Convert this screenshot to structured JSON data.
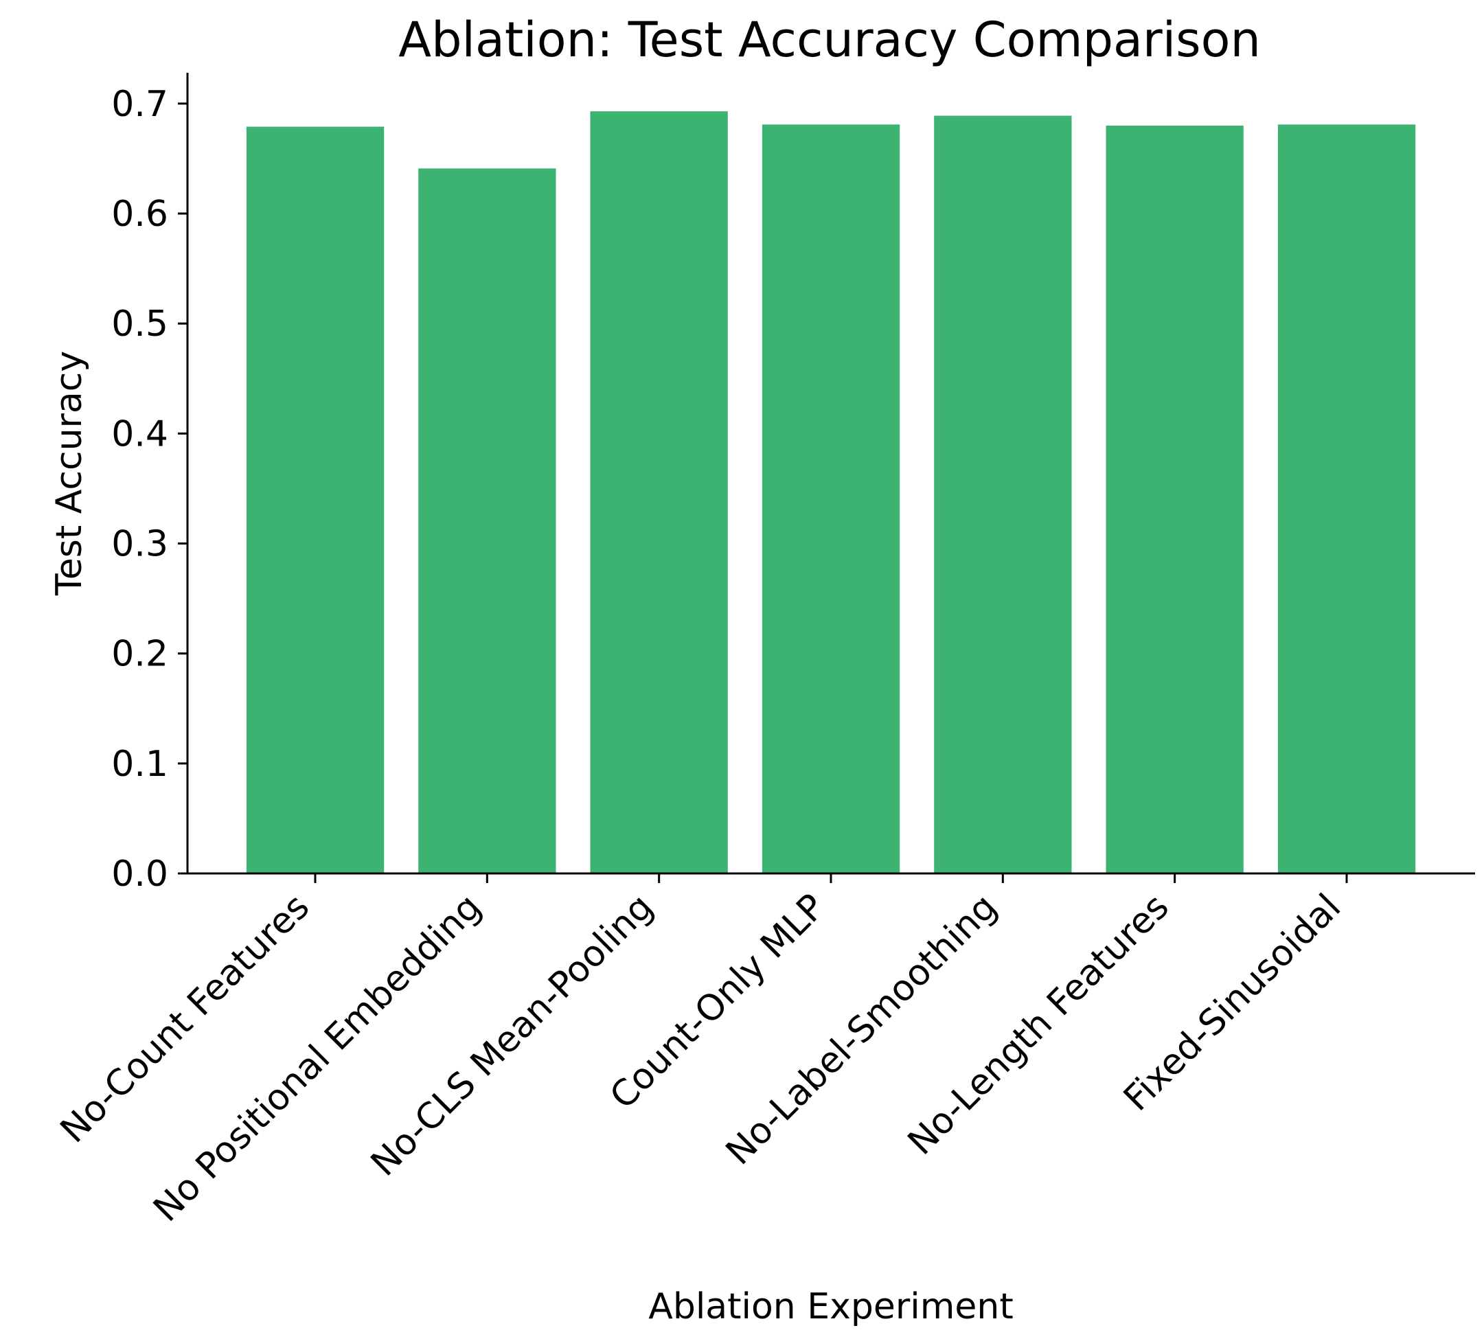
{
  "chart_data": {
    "type": "bar",
    "title": "Ablation: Test Accuracy Comparison",
    "xlabel": "Ablation Experiment",
    "ylabel": "Test Accuracy",
    "categories": [
      "No-Count Features",
      "No Positional Embedding",
      "No-CLS Mean-Pooling",
      "Count-Only MLP",
      "No-Label-Smoothing",
      "No-Length Features",
      "Fixed-Sinusoidal"
    ],
    "values": [
      0.679,
      0.641,
      0.693,
      0.681,
      0.689,
      0.68,
      0.681
    ],
    "ylim": [
      0,
      0.728
    ],
    "yticks": [
      0.0,
      0.1,
      0.2,
      0.3,
      0.4,
      0.5,
      0.6,
      0.7
    ],
    "ytick_labels": [
      "0.0",
      "0.1",
      "0.2",
      "0.3",
      "0.4",
      "0.5",
      "0.6",
      "0.7"
    ],
    "grid": false,
    "bar_color": "#3cb371"
  }
}
